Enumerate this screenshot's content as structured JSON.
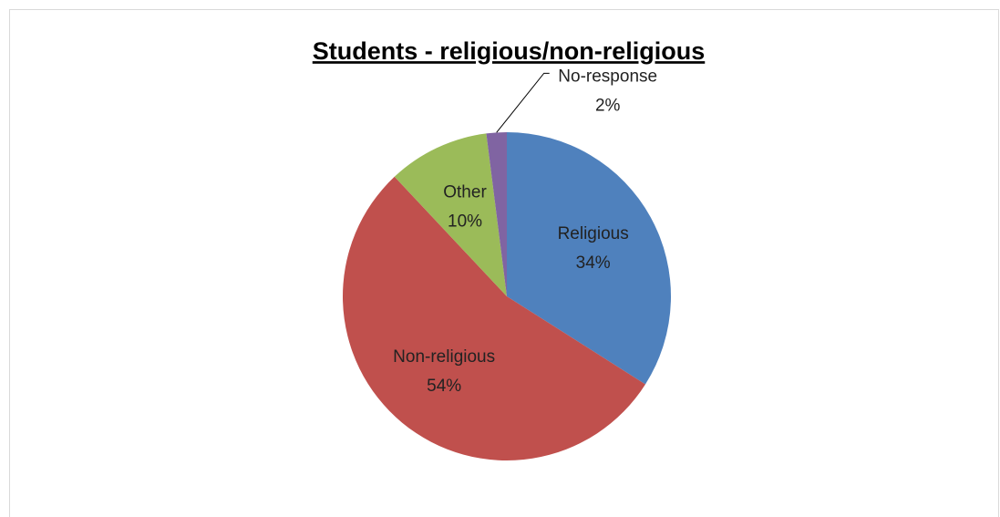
{
  "chart_data": {
    "type": "pie",
    "title": "Students - religious/non-religious",
    "categories": [
      "Religious",
      "Non-religious",
      "Other",
      "No-response"
    ],
    "values": [
      34,
      54,
      10,
      2
    ],
    "value_labels": [
      "34%",
      "54%",
      "10%",
      "2%"
    ],
    "colors": [
      "#4f81bd",
      "#c0504d",
      "#9bbb59",
      "#8064a2"
    ]
  }
}
